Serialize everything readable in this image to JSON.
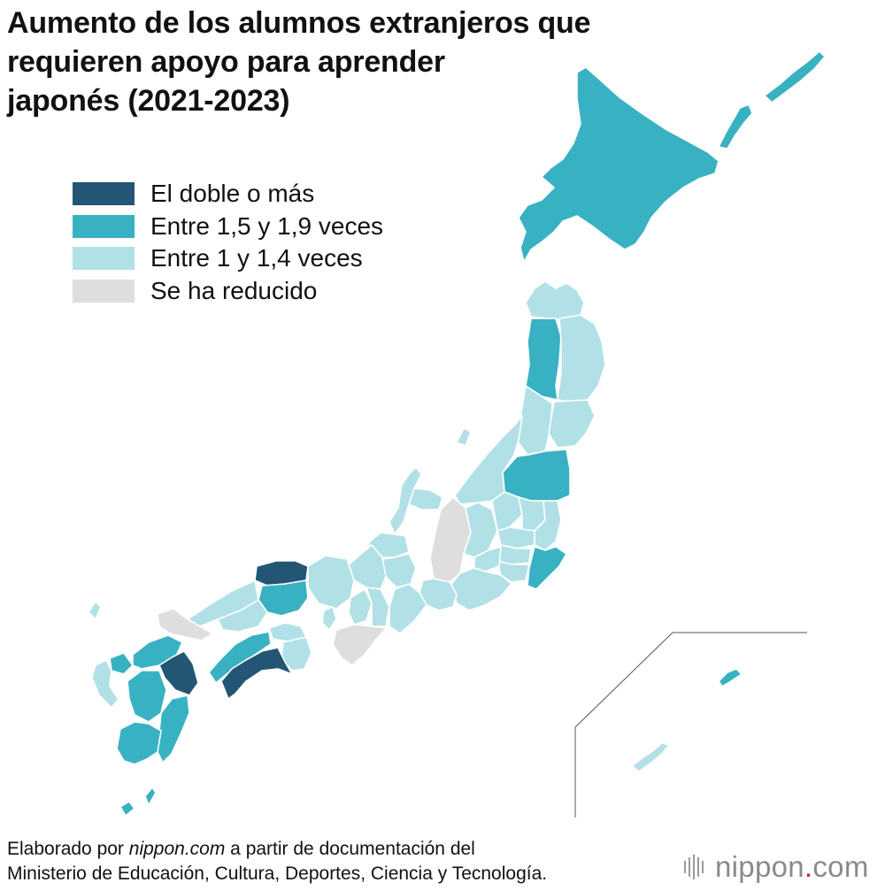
{
  "title_lines": [
    "Aumento de los alumnos extranjeros que",
    "requieren apoyo para aprender",
    "japonés (2021-2023)"
  ],
  "legend": [
    {
      "key": "double",
      "label": "El doble o más",
      "color": "#235574"
    },
    {
      "key": "high",
      "label": "Entre 1,5 y 1,9 veces",
      "color": "#38b2c2"
    },
    {
      "key": "low",
      "label": "Entre 1 y 1,4 veces",
      "color": "#b1e1e6"
    },
    {
      "key": "decrease",
      "label": "Se ha reducido",
      "color": "#dedede"
    }
  ],
  "source": {
    "prefix": "Elaborado por ",
    "site": "nippon.com",
    "suffix": " a partir de documentación del",
    "line2": "Ministerio de Educación, Cultura, Deportes, Ciencia y Tecnología."
  },
  "brand": {
    "name": "nippon",
    "dot": ".",
    "tld": "com"
  }
}
